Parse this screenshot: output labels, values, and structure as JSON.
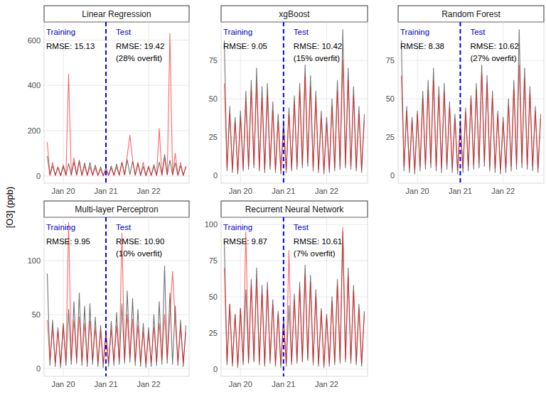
{
  "ylabel": "[O3] (ppb)",
  "chart_data": [
    {
      "type": "line",
      "title": "Linear Regression",
      "grid": true,
      "x": [
        2019.625,
        2019.6875,
        2019.75,
        2019.8125,
        2019.875,
        2019.9375,
        2020,
        2020.0625,
        2020.125,
        2020.1875,
        2020.25,
        2020.3125,
        2020.375,
        2020.4375,
        2020.5,
        2020.5625,
        2020.625,
        2020.6875,
        2020.75,
        2020.8125,
        2020.875,
        2020.9375,
        2021,
        2021.0625,
        2021.125,
        2021.1875,
        2021.25,
        2021.3125,
        2021.375,
        2021.4375,
        2021.5,
        2021.5625,
        2021.625,
        2021.6875,
        2021.75,
        2021.8125,
        2021.875,
        2021.9375,
        2022,
        2022.0625,
        2022.125,
        2022.1875,
        2022.25,
        2022.3125,
        2022.375,
        2022.4375,
        2022.5,
        2022.5625,
        2022.625,
        2022.6875,
        2022.75,
        2022.8125,
        2022.875
      ],
      "series": [
        {
          "color": "#000000",
          "values": [
            88,
            3,
            45,
            2,
            38,
            1,
            42,
            3,
            55,
            4,
            62,
            5,
            70,
            3,
            58,
            2,
            60,
            4,
            48,
            2,
            40,
            1,
            36,
            2,
            44,
            3,
            52,
            4,
            60,
            5,
            72,
            6,
            65,
            3,
            55,
            2,
            42,
            1,
            38,
            2,
            50,
            3,
            62,
            4,
            95,
            5,
            70,
            4,
            58,
            3,
            45,
            2,
            40
          ]
        },
        {
          "color": "#ff0000",
          "values": [
            150,
            5,
            60,
            3,
            40,
            2,
            50,
            2,
            450,
            4,
            80,
            3,
            60,
            2,
            45,
            3,
            40,
            2,
            35,
            2,
            30,
            1,
            25,
            3,
            35,
            2,
            40,
            3,
            60,
            4,
            90,
            180,
            70,
            5,
            60,
            3,
            60,
            2,
            45,
            3,
            40,
            2,
            210,
            3,
            80,
            5,
            630,
            4,
            100,
            3,
            60,
            2,
            45
          ]
        }
      ],
      "xlim": [
        2019.55,
        2022.95
      ],
      "xticks": [
        {
          "value": 2020,
          "label": "Jan 20"
        },
        {
          "value": 2021,
          "label": "Jan 21"
        },
        {
          "value": 2022,
          "label": "Jan 22"
        }
      ],
      "ylim": [
        -32,
        680
      ],
      "yticks": [
        0,
        200,
        400,
        600
      ],
      "split_x": 2021,
      "annotations": [
        "Training",
        "Test",
        "RMSE: 15.13",
        "RMSE: 19.42",
        "(28% overfit)"
      ]
    },
    {
      "type": "line",
      "title": "xgBoost",
      "grid": true,
      "x": [
        2019.625,
        2019.6875,
        2019.75,
        2019.8125,
        2019.875,
        2019.9375,
        2020,
        2020.0625,
        2020.125,
        2020.1875,
        2020.25,
        2020.3125,
        2020.375,
        2020.4375,
        2020.5,
        2020.5625,
        2020.625,
        2020.6875,
        2020.75,
        2020.8125,
        2020.875,
        2020.9375,
        2021,
        2021.0625,
        2021.125,
        2021.1875,
        2021.25,
        2021.3125,
        2021.375,
        2021.4375,
        2021.5,
        2021.5625,
        2021.625,
        2021.6875,
        2021.75,
        2021.8125,
        2021.875,
        2021.9375,
        2022,
        2022.0625,
        2022.125,
        2022.1875,
        2022.25,
        2022.3125,
        2022.375,
        2022.4375,
        2022.5,
        2022.5625,
        2022.625,
        2022.6875,
        2022.75,
        2022.8125,
        2022.875
      ],
      "series": [
        {
          "color": "#000000",
          "values": [
            88,
            3,
            45,
            2,
            38,
            1,
            42,
            3,
            55,
            4,
            62,
            5,
            70,
            3,
            58,
            2,
            60,
            4,
            48,
            2,
            40,
            1,
            36,
            2,
            44,
            3,
            52,
            4,
            60,
            5,
            72,
            6,
            65,
            3,
            55,
            2,
            42,
            1,
            38,
            2,
            50,
            3,
            62,
            4,
            95,
            5,
            70,
            4,
            58,
            3,
            45,
            2,
            40
          ]
        },
        {
          "color": "#ff0000",
          "values": [
            60,
            5,
            40,
            4,
            35,
            3,
            38,
            5,
            48,
            6,
            55,
            7,
            60,
            5,
            50,
            4,
            52,
            6,
            42,
            4,
            35,
            3,
            32,
            4,
            40,
            5,
            48,
            6,
            55,
            7,
            65,
            8,
            58,
            5,
            48,
            4,
            38,
            3,
            34,
            4,
            45,
            5,
            55,
            6,
            75,
            7,
            62,
            6,
            52,
            5,
            40,
            4,
            36
          ]
        }
      ],
      "xlim": [
        2019.55,
        2022.95
      ],
      "xticks": [
        {
          "value": 2020,
          "label": "Jan 20"
        },
        {
          "value": 2021,
          "label": "Jan 21"
        },
        {
          "value": 2022,
          "label": "Jan 22"
        }
      ],
      "ylim": [
        -5,
        100
      ],
      "yticks": [
        0,
        25,
        50,
        75
      ],
      "split_x": 2021,
      "annotations": [
        "Training",
        "Test",
        "RMSE: 9.05",
        "RMSE: 10.42",
        "(15% overfit)"
      ]
    },
    {
      "type": "line",
      "title": "Random Forest",
      "grid": true,
      "x": [
        2019.625,
        2019.6875,
        2019.75,
        2019.8125,
        2019.875,
        2019.9375,
        2020,
        2020.0625,
        2020.125,
        2020.1875,
        2020.25,
        2020.3125,
        2020.375,
        2020.4375,
        2020.5,
        2020.5625,
        2020.625,
        2020.6875,
        2020.75,
        2020.8125,
        2020.875,
        2020.9375,
        2021,
        2021.0625,
        2021.125,
        2021.1875,
        2021.25,
        2021.3125,
        2021.375,
        2021.4375,
        2021.5,
        2021.5625,
        2021.625,
        2021.6875,
        2021.75,
        2021.8125,
        2021.875,
        2021.9375,
        2022,
        2022.0625,
        2022.125,
        2022.1875,
        2022.25,
        2022.3125,
        2022.375,
        2022.4375,
        2022.5,
        2022.5625,
        2022.625,
        2022.6875,
        2022.75,
        2022.8125,
        2022.875
      ],
      "series": [
        {
          "color": "#000000",
          "values": [
            88,
            3,
            45,
            2,
            38,
            1,
            42,
            3,
            55,
            4,
            62,
            5,
            70,
            3,
            58,
            2,
            60,
            4,
            48,
            2,
            40,
            1,
            36,
            2,
            44,
            3,
            52,
            4,
            60,
            5,
            72,
            6,
            65,
            3,
            55,
            2,
            42,
            1,
            38,
            2,
            50,
            3,
            62,
            4,
            95,
            5,
            70,
            4,
            58,
            3,
            45,
            2,
            40
          ]
        },
        {
          "color": "#ff0000",
          "values": [
            65,
            6,
            42,
            5,
            36,
            4,
            40,
            6,
            50,
            7,
            56,
            8,
            62,
            6,
            52,
            5,
            54,
            7,
            44,
            5,
            37,
            4,
            33,
            5,
            41,
            6,
            50,
            7,
            56,
            8,
            66,
            9,
            60,
            6,
            50,
            5,
            40,
            4,
            35,
            5,
            46,
            6,
            56,
            7,
            72,
            8,
            63,
            7,
            53,
            6,
            42,
            5,
            37
          ]
        }
      ],
      "xlim": [
        2019.55,
        2022.95
      ],
      "xticks": [
        {
          "value": 2020,
          "label": "Jan 20"
        },
        {
          "value": 2021,
          "label": "Jan 21"
        },
        {
          "value": 2022,
          "label": "Jan 22"
        }
      ],
      "ylim": [
        -5,
        100
      ],
      "yticks": [
        0,
        25,
        50,
        75
      ],
      "split_x": 2021,
      "annotations": [
        "Training",
        "Test",
        "RMSE: 8.38",
        "RMSE: 10.62",
        "(27% overfit)"
      ]
    },
    {
      "type": "line",
      "title": "Multi-layer Perceptron",
      "grid": true,
      "x": [
        2019.625,
        2019.6875,
        2019.75,
        2019.8125,
        2019.875,
        2019.9375,
        2020,
        2020.0625,
        2020.125,
        2020.1875,
        2020.25,
        2020.3125,
        2020.375,
        2020.4375,
        2020.5,
        2020.5625,
        2020.625,
        2020.6875,
        2020.75,
        2020.8125,
        2020.875,
        2020.9375,
        2021,
        2021.0625,
        2021.125,
        2021.1875,
        2021.25,
        2021.3125,
        2021.375,
        2021.4375,
        2021.5,
        2021.5625,
        2021.625,
        2021.6875,
        2021.75,
        2021.8125,
        2021.875,
        2021.9375,
        2022,
        2022.0625,
        2022.125,
        2022.1875,
        2022.25,
        2022.3125,
        2022.375,
        2022.4375,
        2022.5,
        2022.5625,
        2022.625,
        2022.6875,
        2022.75,
        2022.8125,
        2022.875
      ],
      "series": [
        {
          "color": "#000000",
          "values": [
            88,
            3,
            45,
            2,
            38,
            1,
            42,
            3,
            55,
            4,
            62,
            5,
            70,
            3,
            58,
            2,
            60,
            4,
            48,
            2,
            40,
            1,
            36,
            2,
            44,
            3,
            52,
            4,
            60,
            5,
            72,
            6,
            65,
            3,
            55,
            2,
            42,
            1,
            38,
            2,
            50,
            3,
            62,
            4,
            95,
            5,
            70,
            4,
            58,
            3,
            45,
            2,
            40
          ]
        },
        {
          "color": "#ff0000",
          "values": [
            45,
            8,
            38,
            6,
            35,
            5,
            40,
            7,
            135,
            8,
            45,
            9,
            48,
            7,
            42,
            6,
            44,
            8,
            38,
            6,
            34,
            5,
            32,
            6,
            36,
            7,
            40,
            8,
            125,
            9,
            50,
            10,
            46,
            7,
            40,
            6,
            34,
            5,
            32,
            6,
            38,
            7,
            42,
            8,
            50,
            9,
            48,
            90,
            44,
            7,
            38,
            6,
            34
          ]
        }
      ],
      "xlim": [
        2019.55,
        2022.95
      ],
      "xticks": [
        {
          "value": 2020,
          "label": "Jan 20"
        },
        {
          "value": 2021,
          "label": "Jan 21"
        },
        {
          "value": 2022,
          "label": "Jan 22"
        }
      ],
      "ylim": [
        -7,
        140
      ],
      "yticks": [
        0,
        50,
        100
      ],
      "split_x": 2021,
      "annotations": [
        "Training",
        "Test",
        "RMSE: 9.95",
        "RMSE: 10.90",
        "(10% overfit)"
      ]
    },
    {
      "type": "line",
      "title": "Recurrent Neural Network",
      "grid": true,
      "x": [
        2019.625,
        2019.6875,
        2019.75,
        2019.8125,
        2019.875,
        2019.9375,
        2020,
        2020.0625,
        2020.125,
        2020.1875,
        2020.25,
        2020.3125,
        2020.375,
        2020.4375,
        2020.5,
        2020.5625,
        2020.625,
        2020.6875,
        2020.75,
        2020.8125,
        2020.875,
        2020.9375,
        2021,
        2021.0625,
        2021.125,
        2021.1875,
        2021.25,
        2021.3125,
        2021.375,
        2021.4375,
        2021.5,
        2021.5625,
        2021.625,
        2021.6875,
        2021.75,
        2021.8125,
        2021.875,
        2021.9375,
        2022,
        2022.0625,
        2022.125,
        2022.1875,
        2022.25,
        2022.3125,
        2022.375,
        2022.4375,
        2022.5,
        2022.5625,
        2022.625,
        2022.6875,
        2022.75,
        2022.8125,
        2022.875
      ],
      "series": [
        {
          "color": "#000000",
          "values": [
            88,
            3,
            45,
            2,
            38,
            1,
            42,
            3,
            55,
            4,
            62,
            5,
            70,
            3,
            58,
            2,
            60,
            4,
            48,
            2,
            40,
            1,
            36,
            2,
            44,
            3,
            52,
            4,
            60,
            5,
            72,
            6,
            65,
            3,
            55,
            2,
            42,
            1,
            38,
            2,
            50,
            3,
            62,
            4,
            95,
            5,
            70,
            4,
            58,
            3,
            45,
            2,
            40
          ]
        },
        {
          "color": "#ff0000",
          "values": [
            70,
            5,
            45,
            4,
            38,
            3,
            42,
            5,
            95,
            5,
            58,
            6,
            62,
            5,
            52,
            4,
            55,
            6,
            45,
            4,
            38,
            3,
            34,
            4,
            82,
            5,
            48,
            6,
            55,
            6,
            65,
            7,
            60,
            5,
            50,
            4,
            40,
            3,
            36,
            4,
            47,
            5,
            58,
            6,
            98,
            7,
            64,
            6,
            54,
            5,
            42,
            4,
            38
          ]
        }
      ],
      "xlim": [
        2019.55,
        2022.95
      ],
      "xticks": [
        {
          "value": 2020,
          "label": "Jan 20"
        },
        {
          "value": 2021,
          "label": "Jan 21"
        },
        {
          "value": 2022,
          "label": "Jan 22"
        }
      ],
      "ylim": [
        -5,
        105
      ],
      "yticks": [
        0,
        25,
        50,
        75,
        100
      ],
      "split_x": 2021,
      "annotations": [
        "Training",
        "Test",
        "RMSE: 9.87",
        "RMSE: 10.61",
        "(7% overfit)"
      ]
    }
  ]
}
